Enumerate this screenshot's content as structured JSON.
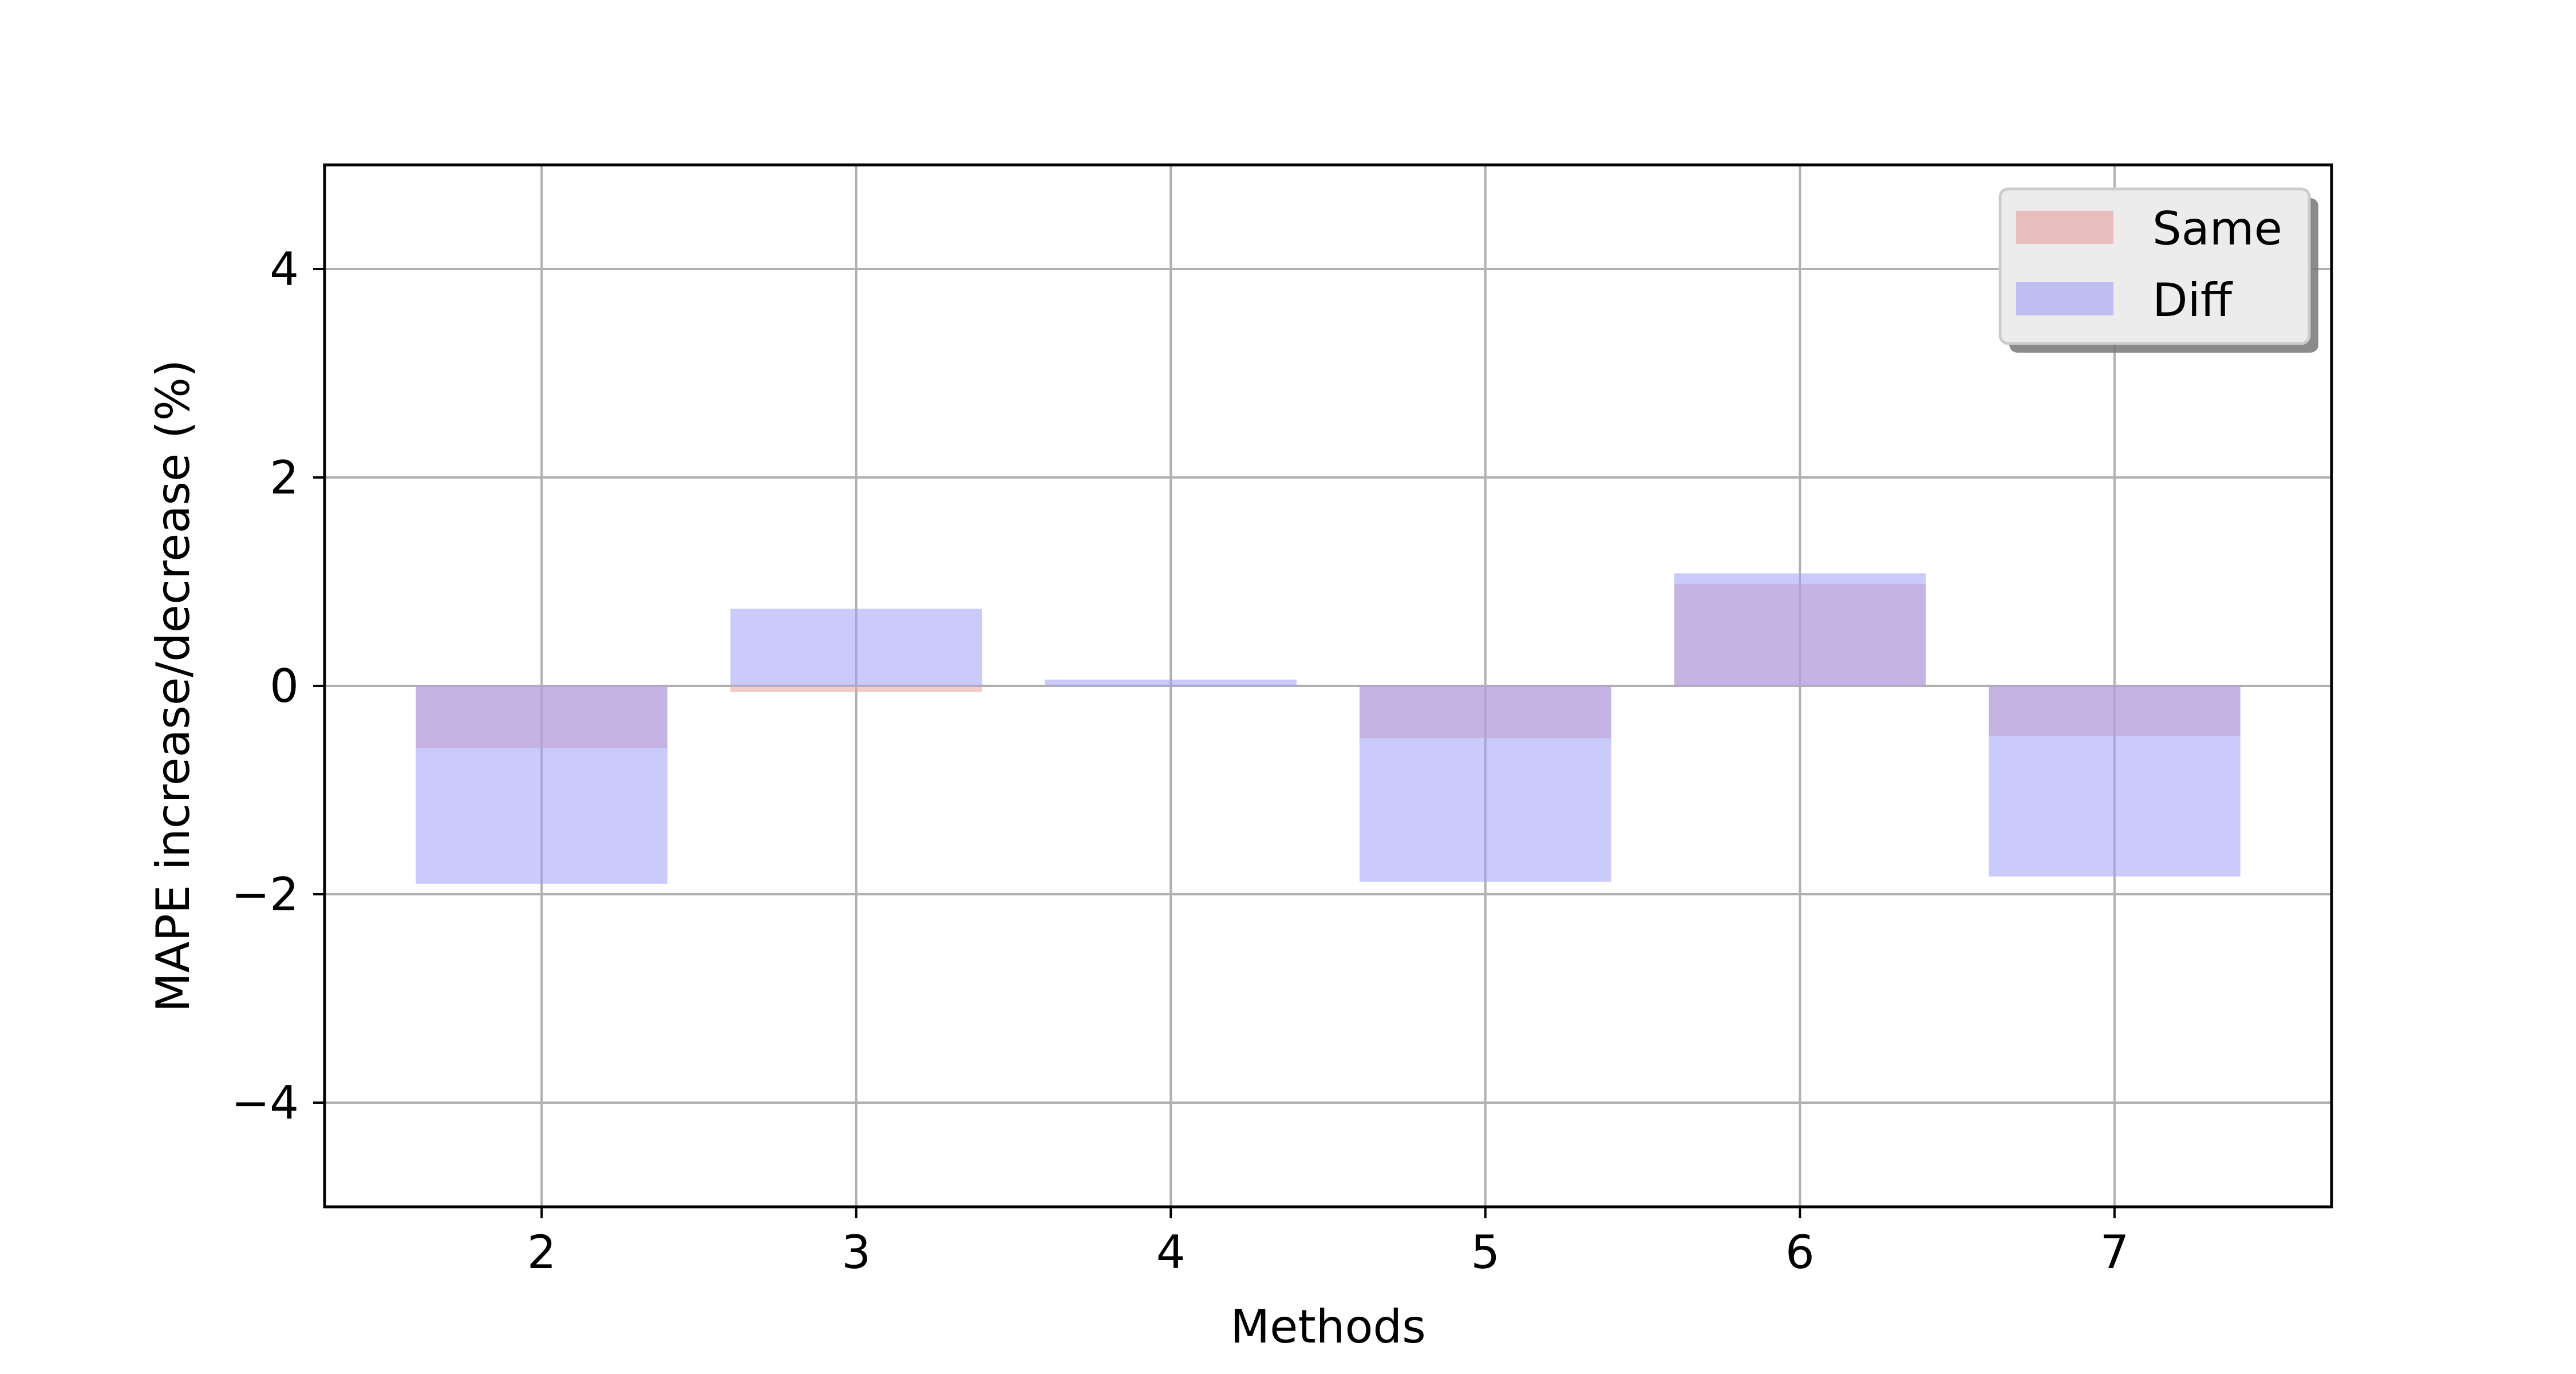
{
  "chart_data": {
    "type": "bar",
    "x": [
      2,
      3,
      4,
      5,
      6,
      7
    ],
    "series": [
      {
        "name": "Same",
        "values": [
          -0.6,
          -0.06,
          0.0,
          -0.5,
          0.98,
          -0.48
        ],
        "color": "#e8a0a0"
      },
      {
        "name": "Diff",
        "values": [
          -1.9,
          0.74,
          0.06,
          -1.88,
          1.08,
          -1.83
        ],
        "color": "#a0a0f8"
      }
    ],
    "xlabel": "Methods",
    "ylabel": "MAPE increase/decrease (%)",
    "xlim": [
      1.31,
      7.69
    ],
    "ylim": [
      -5,
      5
    ],
    "xticks": [
      "2",
      "3",
      "4",
      "5",
      "6",
      "7"
    ],
    "yticks": [
      "4",
      "2",
      "0",
      "−2",
      "−4"
    ],
    "ytick_values": [
      4,
      2,
      0,
      -2,
      -4
    ],
    "bar_width": 0.8,
    "grid": true,
    "legend_position": "top-right"
  }
}
